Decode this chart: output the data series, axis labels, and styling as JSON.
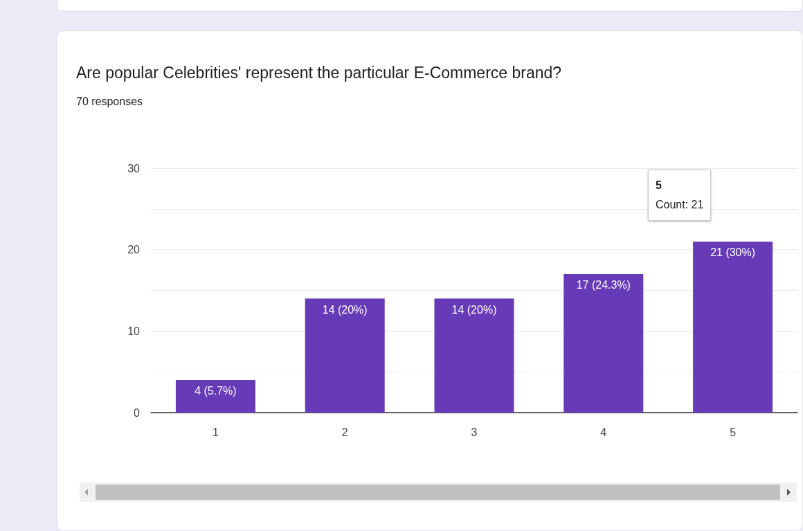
{
  "chart_data": {
    "type": "bar",
    "title": "Are popular Celebrities' represent the particular E-Commerce brand?",
    "subtitle": "70 responses",
    "categories": [
      "1",
      "2",
      "3",
      "4",
      "5"
    ],
    "values": [
      4,
      14,
      14,
      17,
      21
    ],
    "value_labels": [
      "4 (5.7%)",
      "14 (20%)",
      "14 (20%)",
      "17 (24.3%)",
      "21 (30%)"
    ],
    "color": "#673ab7",
    "ylim": [
      0,
      30
    ],
    "yticks": [
      0,
      {
        "value": 5,
        "label": null
      },
      10,
      {
        "value": 15,
        "label": null
      },
      20,
      {
        "value": 25,
        "label": null
      },
      30
    ],
    "grid": "y",
    "annotations": [
      "5\nCount: 21"
    ]
  }
}
